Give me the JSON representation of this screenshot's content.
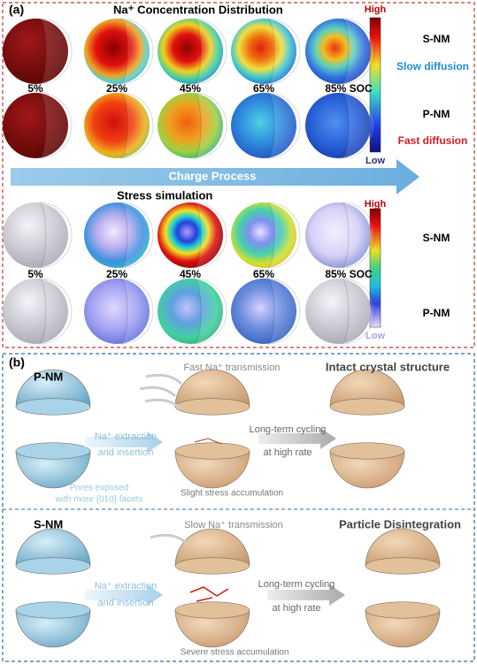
{
  "panel_a": {
    "label": "(a)",
    "title": "Na⁺ Concentration Distribution",
    "concentration": {
      "socs": [
        "5%",
        "25%",
        "45%",
        "65%",
        "85% SOC"
      ],
      "colorbar_high": "High",
      "colorbar_low": "Low",
      "top_row": "S-NM",
      "top_note": "Slow diffusion",
      "bottom_row": "P-NM",
      "bottom_note": "Fast diffusion"
    },
    "arrow": "Charge Process",
    "stress": {
      "title": "Stress simulation",
      "socs": [
        "5%",
        "25%",
        "45%",
        "65%",
        "85% SOC"
      ],
      "colorbar_high": "High",
      "colorbar_low": "Low",
      "top_row": "S-NM",
      "bottom_row": "P-NM"
    }
  },
  "panel_b": {
    "label": "(b)",
    "pnm": {
      "name": "P-NM",
      "transmission": "Fast Na⁺ transmission",
      "result": "Intact crystal structure",
      "process": [
        "Na⁺ extraction",
        "and insertion"
      ],
      "cycling": [
        "Long-term cycling",
        "at high rate"
      ],
      "pores": [
        "Pores exposed",
        "with more {010} facets"
      ],
      "stress": "Slight stress accumulation"
    },
    "snm": {
      "name": "S-NM",
      "transmission": "Slow Na⁺ transmission",
      "result": "Particle Disintegration",
      "process": [
        "Na⁺ extraction",
        "and insertion"
      ],
      "cycling": [
        "Long-term cycling",
        "at high rate"
      ],
      "stress": "Severe stress accumulation"
    }
  }
}
